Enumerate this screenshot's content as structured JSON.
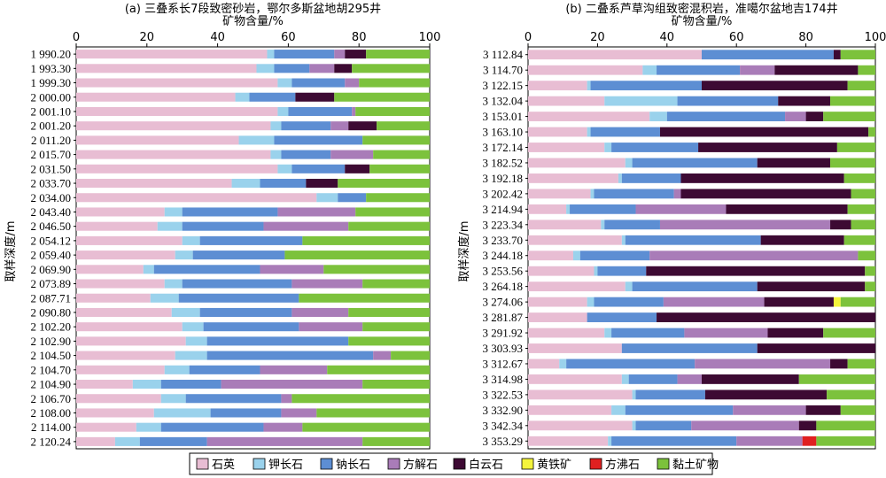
{
  "chart_data": [
    {
      "type": "bar",
      "stacked": true,
      "orientation": "horizontal",
      "title": "(a) 三叠系长7段致密砂岩，鄂尔多斯盆地胡295井",
      "xlabel": "矿物含量/%",
      "ylabel": "取样深度/m",
      "xlim": [
        0,
        100
      ],
      "xticks": [
        "0",
        "20",
        "40",
        "60",
        "80",
        "100"
      ],
      "grid": false,
      "categories": [
        "1 990.20",
        "1 993.30",
        "1 999.30",
        "2 000.00",
        "2 001.10",
        "2 001.20",
        "2 011.20",
        "2 015.70",
        "2 031.50",
        "2 033.70",
        "2 034.00",
        "2 043.40",
        "2 046.50",
        "2 054.12",
        "2 059.40",
        "2 069.90",
        "2 073.89",
        "2 087.71",
        "2 090.80",
        "2 102.20",
        "2 102.90",
        "2 104.50",
        "2 104.70",
        "2 104.90",
        "2 106.70",
        "2 108.00",
        "2 114.00",
        "2 120.24"
      ],
      "series": [
        {
          "name": "石英",
          "values": [
            54,
            51,
            57,
            45,
            57,
            55,
            46,
            55,
            57,
            44,
            68,
            25,
            23,
            30,
            28,
            19,
            25,
            21,
            27,
            30,
            31,
            28,
            25,
            16,
            24,
            22,
            17,
            11
          ]
        },
        {
          "name": "钾长石",
          "values": [
            2,
            5,
            4,
            4,
            3,
            3,
            10,
            3,
            4,
            8,
            6,
            5,
            7,
            5,
            5,
            3,
            5,
            8,
            8,
            6,
            6,
            9,
            7,
            8,
            7,
            16,
            7,
            7
          ]
        },
        {
          "name": "钠长石",
          "values": [
            17,
            10,
            15,
            13,
            18,
            14,
            25,
            14,
            15,
            13,
            8,
            27,
            23,
            29,
            26,
            30,
            31,
            34,
            26,
            27,
            40,
            47,
            20,
            17,
            27,
            20,
            29,
            19
          ]
        },
        {
          "name": "方解石",
          "values": [
            3,
            7,
            4,
            0,
            1,
            5,
            0,
            12,
            0,
            0,
            0,
            22,
            24,
            0,
            0,
            18,
            20,
            0,
            16,
            18,
            0,
            5,
            19,
            40,
            3,
            10,
            11,
            44
          ]
        },
        {
          "name": "白云石",
          "values": [
            6,
            5,
            0,
            11,
            0,
            8,
            0,
            0,
            7,
            9,
            0,
            0,
            0,
            0,
            0,
            0,
            0,
            0,
            0,
            0,
            0,
            0,
            0,
            0,
            0,
            0,
            0,
            0
          ]
        },
        {
          "name": "黄铁矿",
          "values": [
            0,
            0,
            0,
            0,
            0,
            0,
            0,
            0,
            0,
            0,
            0,
            0,
            0,
            0,
            0,
            0,
            0,
            0,
            0,
            0,
            0,
            0,
            0,
            0,
            0,
            0,
            0,
            0
          ]
        },
        {
          "name": "方沸石",
          "values": [
            0,
            0,
            0,
            0,
            0,
            0,
            0,
            0,
            0,
            0,
            0,
            0,
            0,
            0,
            0,
            0,
            0,
            0,
            0,
            0,
            0,
            0,
            0,
            0,
            0,
            0,
            0,
            0
          ]
        },
        {
          "name": "黏土矿物",
          "values": [
            18,
            22,
            20,
            27,
            21,
            15,
            19,
            16,
            17,
            26,
            18,
            21,
            23,
            36,
            41,
            30,
            19,
            37,
            23,
            19,
            23,
            11,
            29,
            19,
            39,
            32,
            36,
            19
          ]
        }
      ]
    },
    {
      "type": "bar",
      "stacked": true,
      "orientation": "horizontal",
      "title": "(b) 二叠系芦草沟组致密混积岩，准噶尔盆地吉174井",
      "xlabel": "矿物含量/%",
      "ylabel": "取样深度/m",
      "xlim": [
        0,
        100
      ],
      "xticks": [
        "0",
        "20",
        "40",
        "60",
        "80",
        "100"
      ],
      "grid": false,
      "categories": [
        "3 112.84",
        "3 114.70",
        "3 122.15",
        "3 132.04",
        "3 153.01",
        "3 163.10",
        "3 172.14",
        "3 182.52",
        "3 192.18",
        "3 202.42",
        "3 214.94",
        "3 223.34",
        "3 233.70",
        "3 244.18",
        "3 253.56",
        "3 264.18",
        "3 274.06",
        "3 281.87",
        "3 291.92",
        "3 303.93",
        "3 312.67",
        "3 314.98",
        "3 322.53",
        "3 332.90",
        "3 342.34",
        "3 353.29"
      ],
      "series": [
        {
          "name": "石英",
          "values": [
            50,
            33,
            17,
            22,
            35,
            17,
            22,
            28,
            26,
            18,
            11,
            21,
            27,
            13,
            19,
            28,
            17,
            17,
            22,
            27,
            9,
            27,
            30,
            24,
            30,
            23
          ]
        },
        {
          "name": "钾长石",
          "values": [
            0,
            4,
            1,
            21,
            5,
            1,
            2,
            2,
            1,
            1,
            1,
            1,
            1,
            2,
            1,
            2,
            2,
            0,
            2,
            0,
            2,
            2,
            1,
            4,
            1,
            1
          ]
        },
        {
          "name": "钠长石",
          "values": [
            38,
            24,
            32,
            29,
            34,
            20,
            25,
            36,
            17,
            23,
            19,
            16,
            39,
            20,
            14,
            36,
            20,
            20,
            21,
            39,
            37,
            14,
            20,
            31,
            16,
            36
          ]
        },
        {
          "name": "方解石",
          "values": [
            0,
            10,
            0,
            0,
            6,
            0,
            0,
            0,
            0,
            2,
            26,
            49,
            0,
            60,
            0,
            0,
            29,
            0,
            24,
            0,
            39,
            7,
            0,
            21,
            31,
            19
          ]
        },
        {
          "name": "白云石",
          "values": [
            2,
            24,
            42,
            15,
            5,
            60,
            40,
            21,
            47,
            49,
            35,
            6,
            24,
            0,
            63,
            31,
            20,
            63,
            16,
            34,
            5,
            28,
            35,
            10,
            5,
            0
          ]
        },
        {
          "name": "黄铁矿",
          "values": [
            0,
            0,
            0,
            0,
            0,
            0,
            0,
            0,
            0,
            0,
            0,
            0,
            0,
            0,
            0,
            0,
            2,
            0,
            0,
            0,
            0,
            0,
            0,
            0,
            0,
            0
          ]
        },
        {
          "name": "方沸石",
          "values": [
            0,
            0,
            0,
            0,
            0,
            0,
            0,
            0,
            0,
            0,
            0,
            0,
            0,
            0,
            0,
            0,
            0,
            0,
            0,
            0,
            0,
            0,
            0,
            0,
            0,
            4
          ]
        },
        {
          "name": "黏土矿物",
          "values": [
            10,
            5,
            8,
            13,
            15,
            2,
            11,
            13,
            9,
            7,
            8,
            7,
            9,
            5,
            3,
            3,
            10,
            0,
            15,
            0,
            8,
            22,
            14,
            10,
            17,
            17
          ]
        }
      ]
    }
  ],
  "colors": {
    "石英": "#e8bdd3",
    "钾长石": "#9ad2ec",
    "钠长石": "#5d8ed3",
    "方解石": "#a97cb8",
    "白云石": "#3d0a33",
    "黄铁矿": "#f4f43c",
    "方沸石": "#e02020",
    "黏土矿物": "#7cc23c"
  },
  "legend": {
    "placement": "bottom",
    "items": [
      "石英",
      "钾长石",
      "钠长石",
      "方解石",
      "白云石",
      "黄铁矿",
      "方沸石",
      "黏土矿物"
    ]
  }
}
